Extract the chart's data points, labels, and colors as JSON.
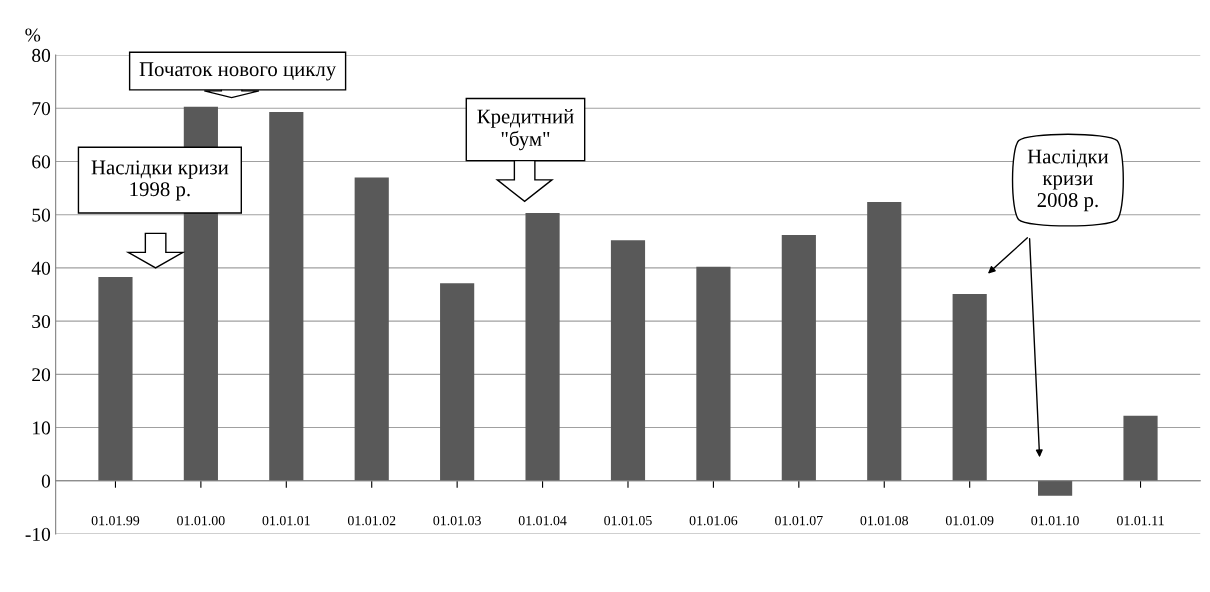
{
  "chart_data": {
    "type": "bar",
    "ylabel": "%",
    "categories": [
      "01.01.99",
      "01.01.00",
      "01.01.01",
      "01.01.02",
      "01.01.03",
      "01.01.04",
      "01.01.05",
      "01.01.06",
      "01.01.07",
      "01.01.08",
      "01.01.09",
      "01.01.10",
      "01.01.11"
    ],
    "values": [
      38.3,
      70.3,
      69.3,
      57,
      37.1,
      50.3,
      45.2,
      40.2,
      46.2,
      52.4,
      35.1,
      -2.8,
      12.2
    ],
    "color": "#595959",
    "ylim": [
      -10,
      80
    ],
    "yticks": [
      -10,
      0,
      10,
      20,
      30,
      40,
      50,
      60,
      70,
      80
    ],
    "grid": "y",
    "annotations": [
      "Наслідки кризи\n1998 р.",
      "Початок нового циклу",
      "Кредитний\n\"бум\"",
      "Наслідки\nкризи\n2008 р."
    ]
  }
}
